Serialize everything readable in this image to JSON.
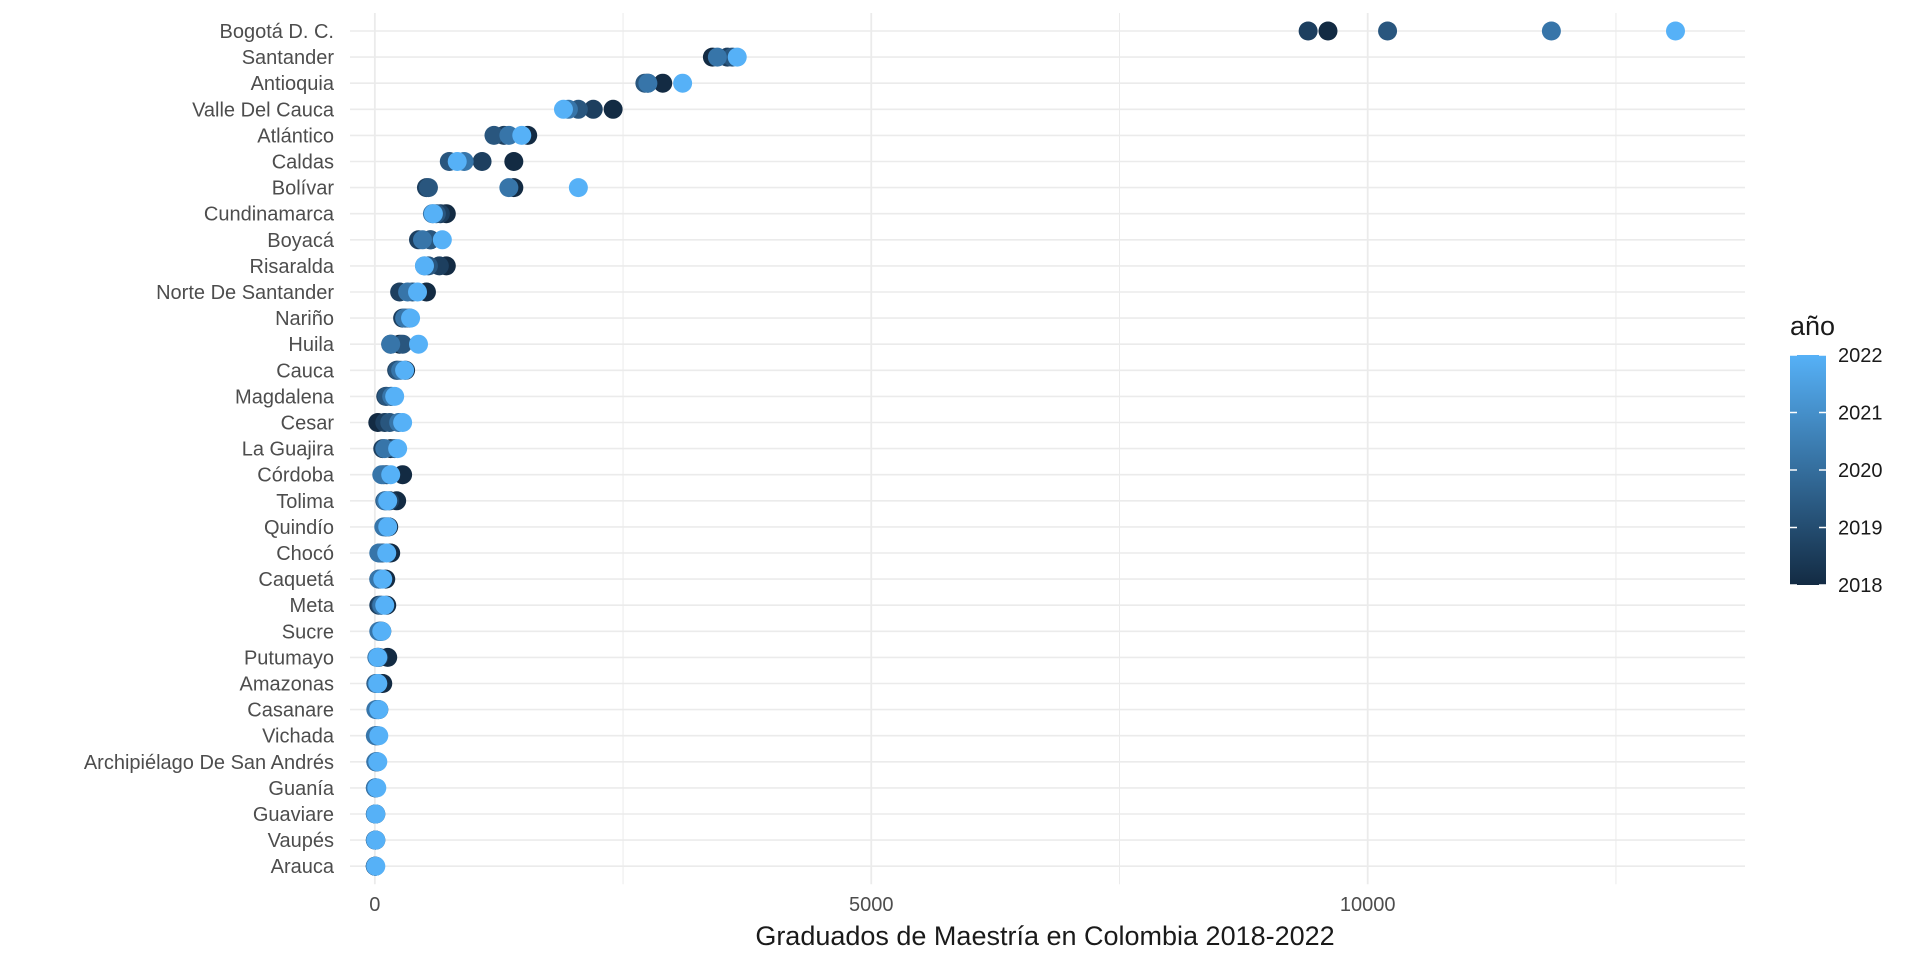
{
  "chart_data": {
    "type": "scatter",
    "xlabel": "Graduados de Maestría en Colombia 2018-2022",
    "ylabel": "",
    "xlim": [
      -250,
      13800
    ],
    "x_ticks": [
      0,
      5000,
      10000
    ],
    "x_tick_labels": [
      "0",
      "5000",
      "10000"
    ],
    "x_minor_ticks": [
      2500,
      7500,
      12500
    ],
    "grid": true,
    "legend": {
      "title": "año",
      "position": "right",
      "type": "colorbar",
      "min": 2018,
      "max": 2022,
      "ticks": [
        "2018",
        "2019",
        "2020",
        "2021",
        "2022"
      ]
    },
    "colors": {
      "2018": "#132B43",
      "2019": "#1d3f5f",
      "2020": "#29567e",
      "2021": "#3775a9",
      "2022": "#56B1F7",
      "grid": "#ebebeb",
      "text": "#4d4d4d"
    },
    "years": [
      2018,
      2019,
      2020,
      2021,
      2022
    ],
    "categories": [
      "Bogotá D. C.",
      "Santander",
      "Antioquia",
      "Valle Del Cauca",
      "Atlántico",
      "Caldas",
      "Bolívar",
      "Cundinamarca",
      "Boyacá",
      "Risaralda",
      "Norte De Santander",
      "Nariño",
      "Huila",
      "Cauca",
      "Magdalena",
      "Cesar",
      "La Guajira",
      "Córdoba",
      "Tolima",
      "Quindío",
      "Chocó",
      "Caquetá",
      "Meta",
      "Sucre",
      "Putumayo",
      "Amazonas",
      "Casanare",
      "Vichada",
      "Archipiélago De San Andrés",
      "Guanía",
      "Guaviare",
      "Vaupés",
      "Arauca"
    ],
    "series": [
      {
        "year": 2018,
        "values": [
          9600,
          3400,
          2900,
          2400,
          1540,
          1400,
          1400,
          720,
          560,
          720,
          520,
          350,
          250,
          310,
          160,
          30,
          160,
          280,
          220,
          140,
          160,
          110,
          120,
          70,
          130,
          80,
          40,
          30,
          20,
          10,
          10,
          10,
          5
        ]
      },
      {
        "year": 2019,
        "values": [
          9400,
          3550,
          2750,
          2200,
          1300,
          1080,
          520,
          660,
          440,
          650,
          250,
          280,
          160,
          220,
          110,
          100,
          80,
          120,
          150,
          110,
          50,
          40,
          40,
          50,
          40,
          30,
          20,
          10,
          25,
          8,
          8,
          6,
          5
        ]
      },
      {
        "year": 2020,
        "values": [
          10200,
          3600,
          2720,
          2050,
          1200,
          750,
          540,
          620,
          560,
          540,
          380,
          310,
          280,
          230,
          120,
          150,
          200,
          90,
          100,
          120,
          80,
          60,
          60,
          60,
          30,
          10,
          30,
          10,
          10,
          5,
          5,
          5,
          5
        ]
      },
      {
        "year": 2021,
        "values": [
          11850,
          3450,
          2750,
          1950,
          1350,
          900,
          1350,
          580,
          480,
          500,
          330,
          300,
          160,
          260,
          170,
          240,
          100,
          70,
          110,
          90,
          40,
          40,
          70,
          40,
          20,
          20,
          10,
          5,
          10,
          5,
          5,
          5,
          5
        ]
      },
      {
        "year": 2022,
        "values": [
          13100,
          3650,
          3100,
          1900,
          1480,
          830,
          2050,
          590,
          680,
          500,
          430,
          360,
          440,
          300,
          200,
          280,
          230,
          160,
          130,
          130,
          120,
          80,
          100,
          70,
          30,
          30,
          40,
          40,
          30,
          20,
          10,
          10,
          10
        ]
      }
    ]
  }
}
